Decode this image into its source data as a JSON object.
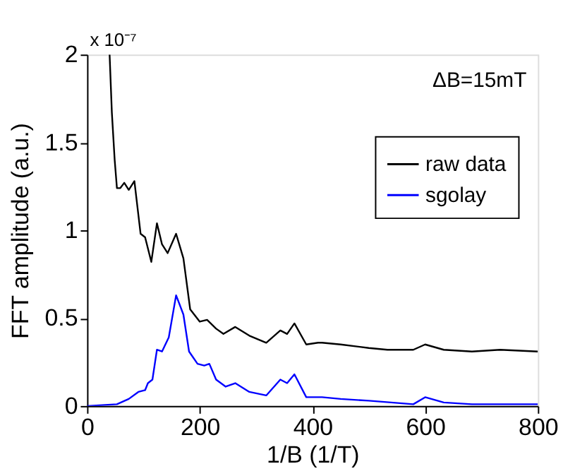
{
  "chart_data": {
    "type": "line",
    "xlabel": "1/B (1/T)",
    "ylabel": "FFT amplitude (a.u.)",
    "xlim": [
      0,
      800
    ],
    "xticks": [
      0,
      200,
      400,
      600,
      800
    ],
    "ylim": [
      0,
      2
    ],
    "yticks": [
      0,
      0.5,
      1,
      1.5,
      2
    ],
    "grid": false,
    "legend": "top right",
    "marker": "none",
    "line_style": "solid",
    "annotations": [
      "x 10⁻⁷",
      "ΔB=15mT"
    ],
    "series": [
      {
        "name": "raw data",
        "color": "#000000",
        "x": [
          40,
          44,
          49,
          53,
          59,
          66,
          74,
          84,
          95,
          103,
          114,
          124,
          133,
          143,
          158,
          171,
          183,
          200,
          213,
          229,
          242,
          263,
          288,
          318,
          343,
          355,
          368,
          389,
          410,
          417,
          450,
          500,
          533,
          579,
          600,
          633,
          683,
          733,
          800
        ],
        "values": [
          2,
          1.67,
          1.4,
          1.24,
          1.24,
          1.27,
          1.23,
          1.28,
          0.98,
          0.96,
          0.82,
          1.04,
          0.92,
          0.87,
          0.98,
          0.84,
          0.55,
          0.48,
          0.49,
          0.44,
          0.41,
          0.45,
          0.4,
          0.36,
          0.43,
          0.41,
          0.47,
          0.35,
          0.36,
          0.36,
          0.35,
          0.33,
          0.32,
          0.32,
          0.35,
          0.32,
          0.31,
          0.32,
          0.31
        ]
      },
      {
        "name": "sgolay",
        "color": "#0000ff",
        "x": [
          0,
          53,
          74,
          91,
          103,
          108,
          116,
          124,
          133,
          145,
          158,
          171,
          181,
          196,
          208,
          217,
          229,
          246,
          263,
          288,
          318,
          343,
          355,
          368,
          389,
          410,
          417,
          450,
          500,
          579,
          600,
          633,
          683,
          733,
          783,
          800
        ],
        "values": [
          0,
          0.01,
          0.04,
          0.08,
          0.09,
          0.13,
          0.15,
          0.32,
          0.31,
          0.39,
          0.63,
          0.52,
          0.31,
          0.24,
          0.23,
          0.24,
          0.15,
          0.11,
          0.13,
          0.08,
          0.06,
          0.15,
          0.13,
          0.18,
          0.05,
          0.05,
          0.05,
          0.04,
          0.03,
          0.01,
          0.05,
          0.02,
          0.01,
          0.01,
          0.01,
          0.01
        ]
      }
    ]
  }
}
